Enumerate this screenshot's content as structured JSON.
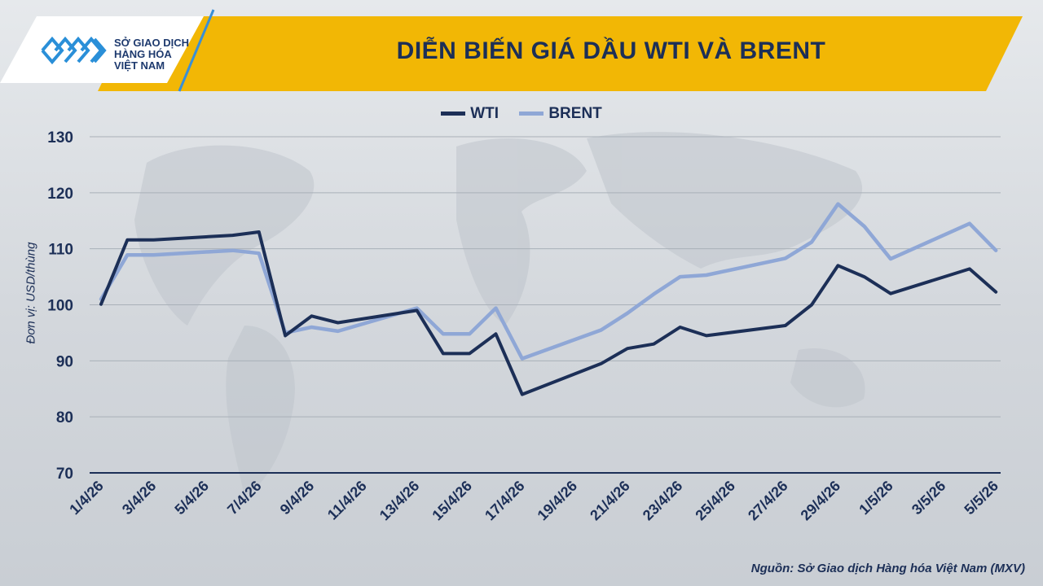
{
  "header": {
    "brand_line1": "SỞ GIAO DỊCH",
    "brand_line2": "HÀNG HÓA",
    "brand_line3": "VIỆT NAM",
    "title": "DIỄN BIẾN GIÁ DẦU WTI VÀ BRENT"
  },
  "footer": {
    "source": "Nguồn: Sở Giao dịch Hàng hóa Việt Nam (MXV)"
  },
  "colors": {
    "banner": "#f2b705",
    "wti": "#1c2f57",
    "brent": "#8fa7d6"
  },
  "chart_data": {
    "type": "line",
    "title": "DIỄN BIẾN GIÁ DẦU WTI VÀ BRENT",
    "xlabel": "",
    "ylabel": "Đơn vị: USD/thùng",
    "ylim": [
      70,
      130
    ],
    "yticks": [
      "70",
      "80",
      "90",
      "100",
      "110",
      "120",
      "130"
    ],
    "grid": true,
    "legend": "top-center",
    "tick_labels": [
      "1/4/26",
      "3/4/26",
      "5/4/26",
      "7/4/26",
      "9/4/26",
      "11/4/26",
      "13/4/26",
      "15/4/26",
      "17/4/26",
      "19/4/26",
      "21/4/26",
      "23/4/26",
      "25/4/26",
      "27/4/26",
      "29/4/26",
      "1/5/26",
      "3/5/26",
      "5/5/26"
    ],
    "x": [
      "1/4/26",
      "2/4/26",
      "3/4/26",
      "6/4/26",
      "7/4/26",
      "8/4/26",
      "9/4/26",
      "10/4/26",
      "13/4/26",
      "14/4/26",
      "15/4/26",
      "16/4/26",
      "17/4/26",
      "20/4/26",
      "21/4/26",
      "22/4/26",
      "23/4/26",
      "24/4/26",
      "27/4/26",
      "28/4/26",
      "29/4/26",
      "30/4/26",
      "1/5/26",
      "4/5/26",
      "5/5/26"
    ],
    "series": [
      {
        "name": "WTI",
        "color": "#1c2f57",
        "values": [
          100.1,
          111.6,
          111.6,
          112.4,
          113.0,
          94.5,
          98.0,
          96.8,
          99.0,
          91.3,
          91.3,
          94.8,
          84.0,
          89.5,
          92.2,
          93.0,
          96.0,
          94.5,
          96.3,
          100.0,
          107.0,
          105.0,
          102.0,
          106.4,
          102.3
        ]
      },
      {
        "name": "BRENT",
        "color": "#8fa7d6",
        "values": [
          101.0,
          108.9,
          108.9,
          109.7,
          109.2,
          95.0,
          96.0,
          95.3,
          99.4,
          94.8,
          94.8,
          99.4,
          90.4,
          95.5,
          98.5,
          101.9,
          105.0,
          105.3,
          108.3,
          111.2,
          118.0,
          114.0,
          108.2,
          114.5,
          109.7
        ]
      }
    ]
  }
}
